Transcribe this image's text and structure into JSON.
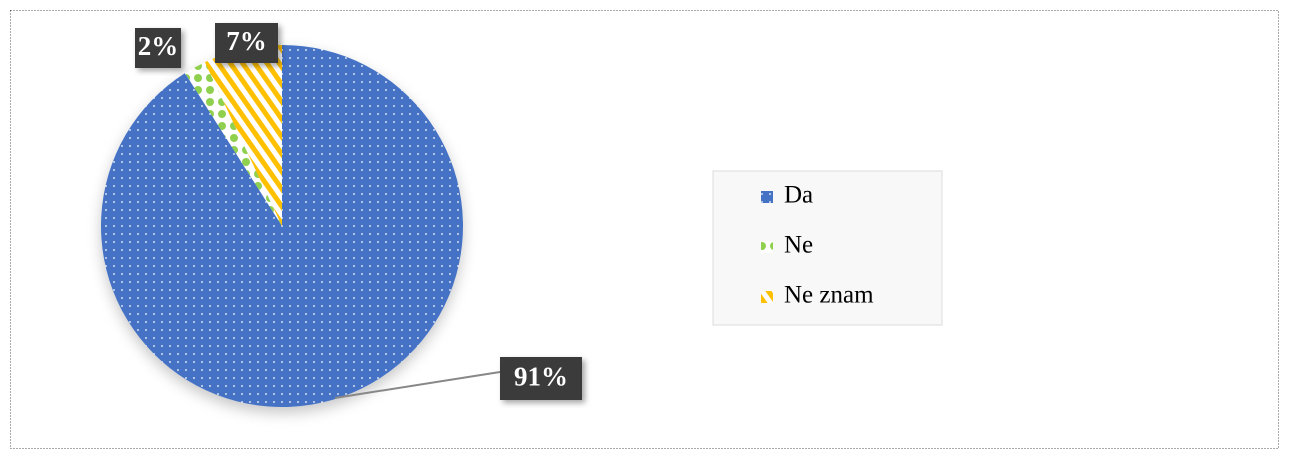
{
  "chart_data": {
    "type": "pie",
    "categories": [
      "Da",
      "Ne",
      "Ne znam"
    ],
    "values": [
      91,
      2,
      7
    ],
    "value_labels": [
      "91%",
      "2%",
      "7%"
    ],
    "colors": [
      "#4472c4",
      "#8fd14f",
      "#ffc000"
    ],
    "legend": "right"
  }
}
